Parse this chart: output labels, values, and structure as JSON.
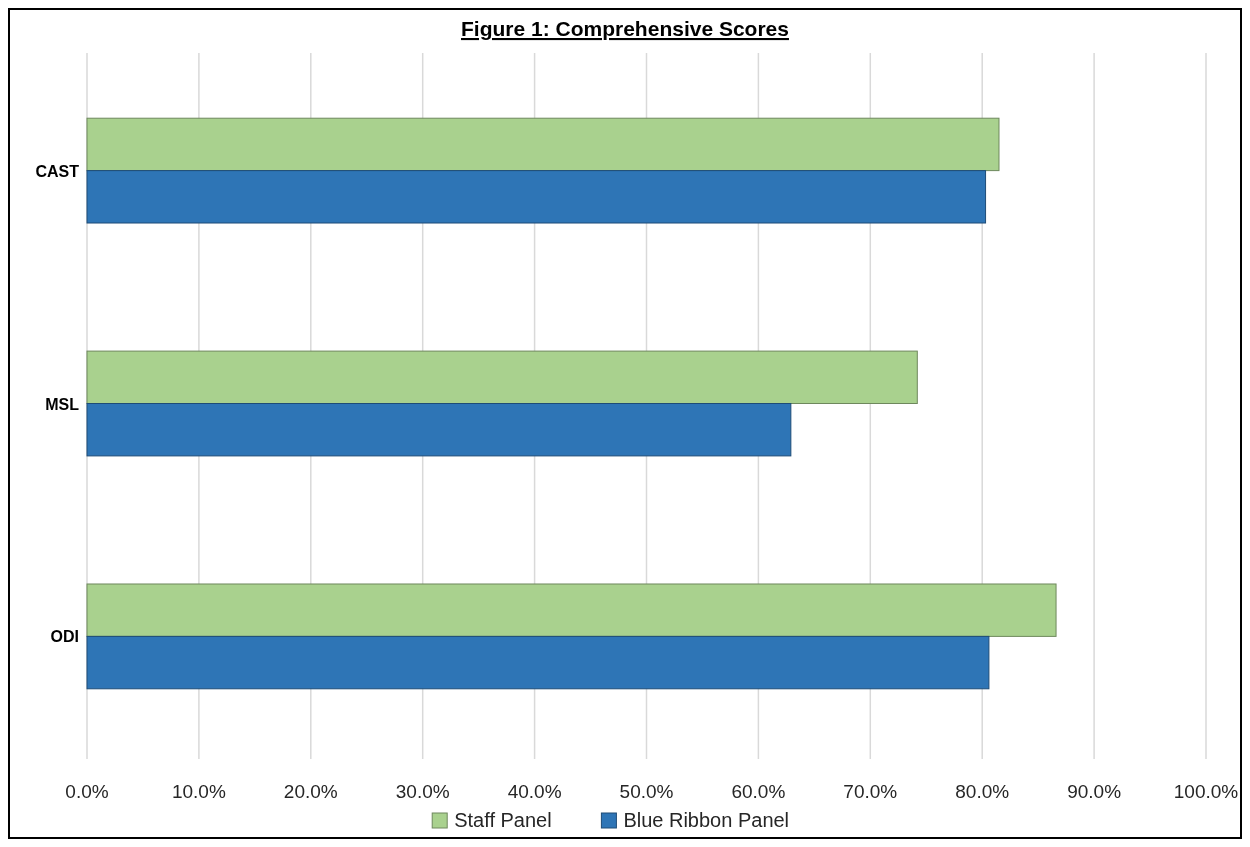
{
  "chart_data": {
    "type": "bar",
    "orientation": "horizontal",
    "title": "Figure 1: Comprehensive Scores",
    "categories": [
      "CAST",
      "MSL",
      "ODI"
    ],
    "series": [
      {
        "name": "Staff Panel",
        "color": "#a9d18e",
        "values": [
          81.5,
          74.2,
          86.6
        ]
      },
      {
        "name": "Blue Ribbon Panel",
        "color": "#2e75b6",
        "values": [
          80.3,
          62.9,
          80.6
        ]
      }
    ],
    "xlim": [
      0,
      100
    ],
    "xticks": [
      {
        "value": 0,
        "label": "0.0%"
      },
      {
        "value": 10,
        "label": "10.0%"
      },
      {
        "value": 20,
        "label": "20.0%"
      },
      {
        "value": 30,
        "label": "30.0%"
      },
      {
        "value": 40,
        "label": "40.0%"
      },
      {
        "value": 50,
        "label": "50.0%"
      },
      {
        "value": 60,
        "label": "60.0%"
      },
      {
        "value": 70,
        "label": "70.0%"
      },
      {
        "value": 80,
        "label": "80.0%"
      },
      {
        "value": 90,
        "label": "90.0%"
      },
      {
        "value": 100,
        "label": "100.0%"
      }
    ],
    "grid": "x",
    "legend": "bottom"
  }
}
